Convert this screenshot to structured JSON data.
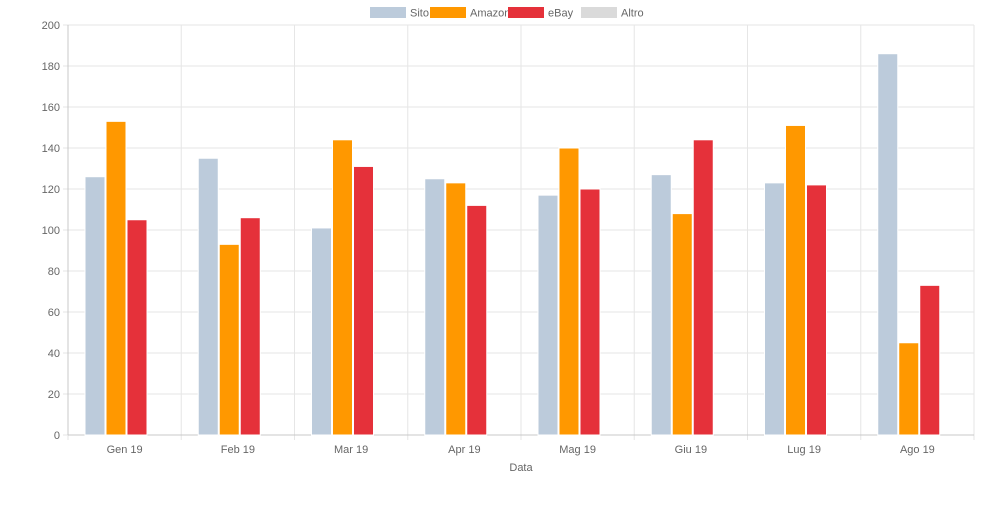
{
  "chart_data": {
    "type": "bar",
    "title": "",
    "xlabel": "Data",
    "ylabel": "",
    "ylim": [
      0,
      200
    ],
    "yticks": [
      0,
      20,
      40,
      60,
      80,
      100,
      120,
      140,
      160,
      180,
      200
    ],
    "grid": true,
    "legend_position": "top-center",
    "categories": [
      "Gen 19",
      "Feb 19",
      "Mar 19",
      "Apr 19",
      "Mag 19",
      "Giu 19",
      "Lug 19",
      "Ago 19"
    ],
    "series": [
      {
        "name": "Sito",
        "color": "#bccbdb",
        "values": [
          126,
          135,
          101,
          125,
          117,
          127,
          123,
          186
        ]
      },
      {
        "name": "Amazon",
        "color": "#ff9800",
        "values": [
          153,
          93,
          144,
          123,
          140,
          108,
          151,
          45
        ]
      },
      {
        "name": "eBay",
        "color": "#e5313a",
        "values": [
          105,
          106,
          131,
          112,
          120,
          144,
          122,
          73
        ]
      },
      {
        "name": "Altro",
        "color": "#dadada",
        "values": [
          0,
          0,
          0,
          0,
          0,
          0,
          0,
          0
        ]
      }
    ]
  }
}
